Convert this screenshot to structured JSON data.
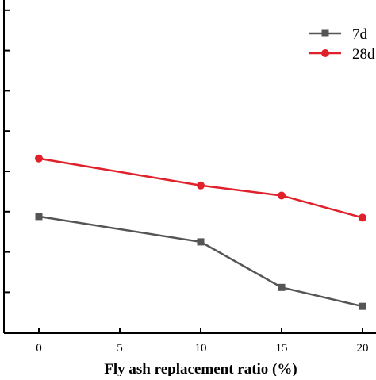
{
  "chart_data": {
    "type": "line",
    "xlabel": "Fly ash replacement ratio (%)",
    "ylabel": "",
    "x": [
      0,
      10,
      15,
      20
    ],
    "xticks": [
      0,
      5,
      10,
      15,
      20
    ],
    "xlim": [
      -1,
      21.2
    ],
    "grid": false,
    "legend_position": "top-right",
    "series": [
      {
        "name": "7d",
        "marker": "square",
        "color": "#555555",
        "values": [
          38.8,
          32.5,
          21.2,
          16.5
        ]
      },
      {
        "name": "28d",
        "marker": "circle",
        "color": "#e0202a",
        "values": [
          53.2,
          46.5,
          44.0,
          38.5
        ]
      }
    ]
  }
}
